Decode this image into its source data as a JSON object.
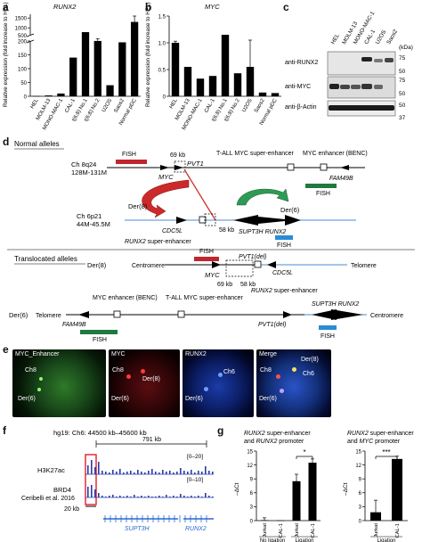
{
  "panel_labels": {
    "a": "a",
    "b": "b",
    "c": "c",
    "d": "d",
    "e": "e",
    "f": "f",
    "g": "g"
  },
  "chart_data": [
    {
      "type": "bar",
      "panel": "a",
      "title": "RUNX2",
      "ylabel": "Relative expression (fold increase to HEL)",
      "ylim": [
        0,
        1600
      ],
      "axis_break": [
        200,
        600
      ],
      "yticks": [
        "1500",
        "1000",
        "500",
        "200",
        "150",
        "100",
        "50",
        "0"
      ],
      "categories": [
        "HEL",
        "MOLM-13",
        "MONO-MAC-1",
        "CAL-1",
        "t(6;8) No.1",
        "t(6;8) No.2",
        "U2OS",
        "Saos2",
        "Normal pDC"
      ],
      "values": [
        1,
        3,
        10,
        140,
        780,
        330,
        40,
        260,
        1300
      ],
      "errors": [
        0,
        0,
        0,
        0,
        0,
        110,
        0,
        0,
        450
      ]
    },
    {
      "type": "bar",
      "panel": "b",
      "title": "MYC",
      "ylabel": "Relative expression (fold increase to HEL)",
      "ylim": [
        0,
        1.5
      ],
      "yticks": [
        "1.5",
        "1.0",
        "0.5",
        "0"
      ],
      "categories": [
        "HEL",
        "MOLM-13",
        "MONO-MAC-1",
        "CAL-1",
        "t(6;8) No.1",
        "t(6;8) No.2",
        "U2OS",
        "Saos2",
        "Normal pDC"
      ],
      "values": [
        1.0,
        0.55,
        0.33,
        0.38,
        1.15,
        0.43,
        0.55,
        0.07,
        0.06
      ],
      "errors": [
        0.03,
        0,
        0,
        0,
        0,
        0,
        0.5,
        0,
        0
      ]
    },
    {
      "type": "bar",
      "panel": "g1",
      "title": "RUNX2 super-enhancer and RUNX2 promoter",
      "ylabel": "-ΔCt",
      "ylim": [
        0,
        15
      ],
      "yticks": [
        "15",
        "12",
        "9",
        "6",
        "3",
        "0"
      ],
      "categories": [
        "Jurkat",
        "CAL-1",
        "Jurkat",
        "CAL-1"
      ],
      "groups": [
        "No ligation",
        "Ligation"
      ],
      "values": [
        0.1,
        0.05,
        8.5,
        12.5
      ],
      "errors": [
        0.5,
        0,
        1.5,
        0.8
      ],
      "significance": "*"
    },
    {
      "type": "bar",
      "panel": "g2",
      "title": "RUNX2 super-enhancer and MYC promoter",
      "ylabel": "-ΔCt",
      "ylim": [
        0,
        15
      ],
      "yticks": [
        "15",
        "12",
        "9",
        "6",
        "3",
        "0"
      ],
      "categories": [
        "Jurkat",
        "CAL-1"
      ],
      "groups": [
        "Ligation"
      ],
      "values": [
        1.8,
        13.3
      ],
      "errors": [
        2.6,
        0.6
      ],
      "significance": "***"
    }
  ],
  "blot": {
    "lanes": [
      "HEL",
      "MOLM-13",
      "MONO-MAC-1",
      "CAL-1",
      "U2OS",
      "Saos2"
    ],
    "kda_label": "(kDa)",
    "rows": [
      {
        "label": "anti-RUNX2",
        "markers": [
          "75",
          "50"
        ]
      },
      {
        "label": "anti-MYC",
        "markers": [
          "75",
          "50"
        ]
      },
      {
        "label": "anti-β-Actin",
        "markers": [
          "50",
          "37"
        ]
      }
    ]
  },
  "diagram": {
    "normal_title": "Normal alleles",
    "translocated_title": "Translocated alleles",
    "chr8_label": "Ch 8q24",
    "chr8_range": "128M-131M",
    "chr6_label": "Ch 6p21",
    "chr6_range": "44M-45.5M",
    "fish": "FISH",
    "kb69": "69 kb",
    "kb58": "58 kb",
    "pvt1": "PVT1",
    "myc": "MYC",
    "tall_se": "T-ALL MYC super-enhancer",
    "myc_enh": "MYC enhancer (BENC)",
    "fam49b": "FAM49B",
    "der8": "Der(8)",
    "der6": "Der(6)",
    "cdc5l": "CDC5L",
    "runx2_se": "RUNX2 super-enhancer",
    "supt3h": "SUPT3H",
    "runx2": "RUNX2",
    "centromere": "Centromere",
    "telomere": "Telomere",
    "pvt1_del": "PVT1(del)"
  },
  "microscopy": {
    "panels": [
      "MYC_Enhancer",
      "MYC",
      "RUNX2",
      "Merge"
    ],
    "ch8": "Ch8",
    "ch6": "Ch6",
    "der8": "Der(8)",
    "der6": "Der(6)"
  },
  "tracks": {
    "region": "hg19: Ch6: 44500 kb–45600 kb",
    "span": "791 kb",
    "h3k27ac": "H3K27ac",
    "h3k27ac_range": "[0–20]",
    "brd4": "BRD4",
    "brd4_ref": "Ceribelli et al. 2016",
    "brd4_range": "[0–10]",
    "scale": "20 kb",
    "gene1": "SUPT3H",
    "gene2": "RUNX2"
  },
  "panel_g": {
    "title1_a": "RUNX2",
    "title1_b": " super-enhancer",
    "title1_c": "and ",
    "title1_d": "RUNX2",
    "title1_e": " promoter",
    "title2_a": "RUNX2",
    "title2_b": " super-enhancer",
    "title2_c": "and ",
    "title2_d": "MYC",
    "title2_e": " promoter",
    "ylabel": "–ΔCt",
    "no_ligation": "No ligation",
    "ligation": "Ligation",
    "sig1": "*",
    "sig2": "***"
  }
}
